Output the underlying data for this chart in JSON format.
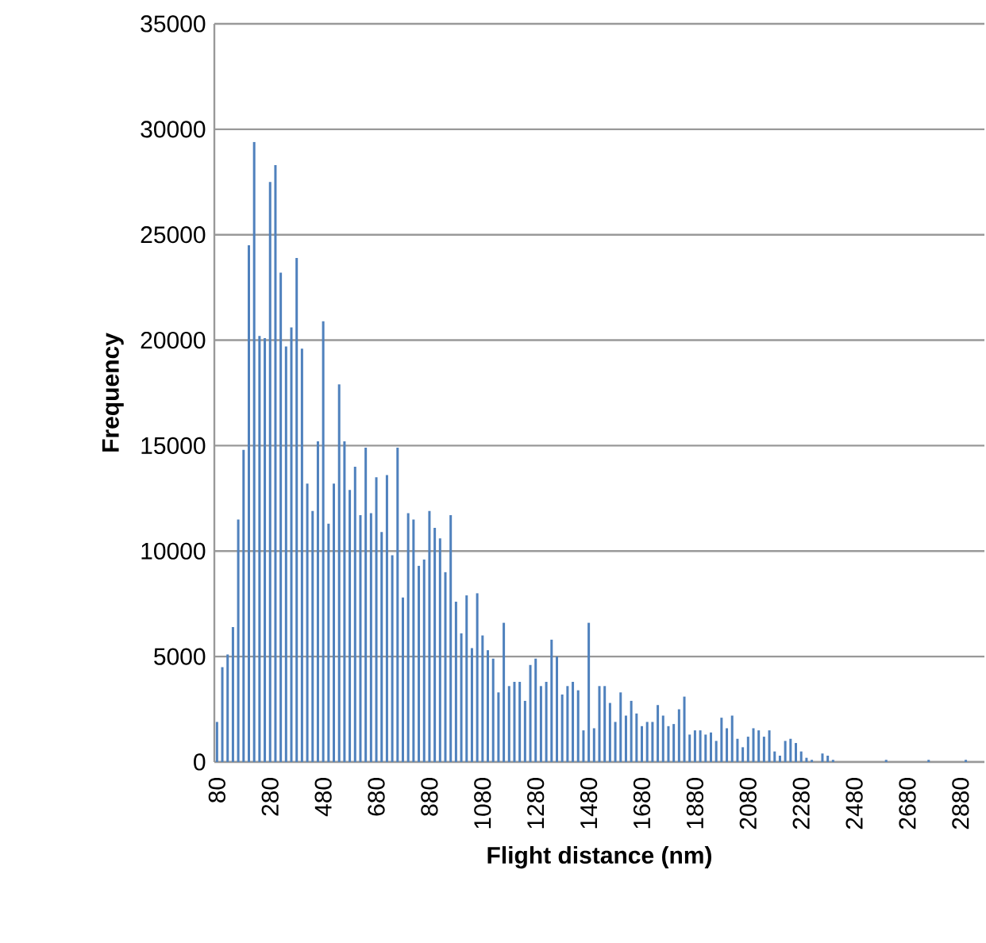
{
  "chart_data": {
    "type": "bar",
    "xlabel": "Flight distance (nm)",
    "ylabel": "Frequency",
    "color": "#4f81bd",
    "categories": [
      "80",
      null,
      null,
      null,
      null,
      null,
      null,
      null,
      null,
      null,
      "280",
      null,
      null,
      null,
      null,
      null,
      null,
      null,
      null,
      null,
      "480",
      null,
      null,
      null,
      null,
      null,
      null,
      null,
      null,
      null,
      "680",
      null,
      null,
      null,
      null,
      null,
      null,
      null,
      null,
      null,
      "880",
      null,
      null,
      null,
      null,
      null,
      null,
      null,
      null,
      null,
      "1080",
      null,
      null,
      null,
      null,
      null,
      null,
      null,
      null,
      null,
      "1280",
      null,
      null,
      null,
      null,
      null,
      null,
      null,
      null,
      null,
      "1480",
      null,
      null,
      null,
      null,
      null,
      null,
      null,
      null,
      null,
      "1680",
      null,
      null,
      null,
      null,
      null,
      null,
      null,
      null,
      null,
      "1880",
      null,
      null,
      null,
      null,
      null,
      null,
      null,
      null,
      null,
      "2080",
      null,
      null,
      null,
      null,
      null,
      null,
      null,
      null,
      null,
      "2280",
      null,
      null,
      null,
      null,
      null,
      null,
      null,
      null,
      null,
      "2480",
      null,
      null,
      null,
      null,
      null,
      null,
      null,
      null,
      null,
      "2680",
      null,
      null,
      null,
      null,
      null,
      null,
      null,
      null,
      null,
      "2880",
      null,
      null,
      null,
      null
    ],
    "values": [
      1900,
      4500,
      5100,
      6400,
      11500,
      14800,
      24500,
      29400,
      20200,
      20100,
      27500,
      28300,
      23200,
      19700,
      20600,
      23900,
      19600,
      13200,
      11900,
      15200,
      20900,
      11300,
      13200,
      17900,
      15200,
      12900,
      14000,
      11700,
      14900,
      11800,
      13500,
      10900,
      13600,
      9800,
      14900,
      7800,
      11800,
      11500,
      9300,
      9600,
      11900,
      11100,
      10600,
      9000,
      11700,
      7600,
      6100,
      7900,
      5400,
      8000,
      6000,
      5300,
      4900,
      3300,
      6600,
      3600,
      3800,
      3800,
      2900,
      4600,
      4900,
      3600,
      3800,
      5800,
      5000,
      3200,
      3600,
      3800,
      3400,
      1500,
      6600,
      1600,
      3600,
      3600,
      2800,
      1900,
      3300,
      2200,
      2900,
      2300,
      1700,
      1900,
      1900,
      2700,
      2200,
      1700,
      1800,
      2500,
      3100,
      1300,
      1500,
      1500,
      1300,
      1400,
      1000,
      2100,
      1600,
      2200,
      1100,
      700,
      1200,
      1600,
      1500,
      1200,
      1500,
      500,
      300,
      1000,
      1100,
      900,
      500,
      200,
      100,
      0,
      400,
      300,
      100,
      0,
      0,
      0,
      0,
      0,
      0,
      0,
      0,
      0,
      100,
      0,
      0,
      0,
      0,
      0,
      0,
      0,
      100,
      0,
      0,
      0,
      0,
      0,
      0,
      100,
      0,
      0,
      0
    ],
    "ylim": [
      0,
      35000
    ],
    "yticks": [
      0,
      5000,
      10000,
      15000,
      20000,
      25000,
      30000,
      35000
    ],
    "grid": "y"
  }
}
